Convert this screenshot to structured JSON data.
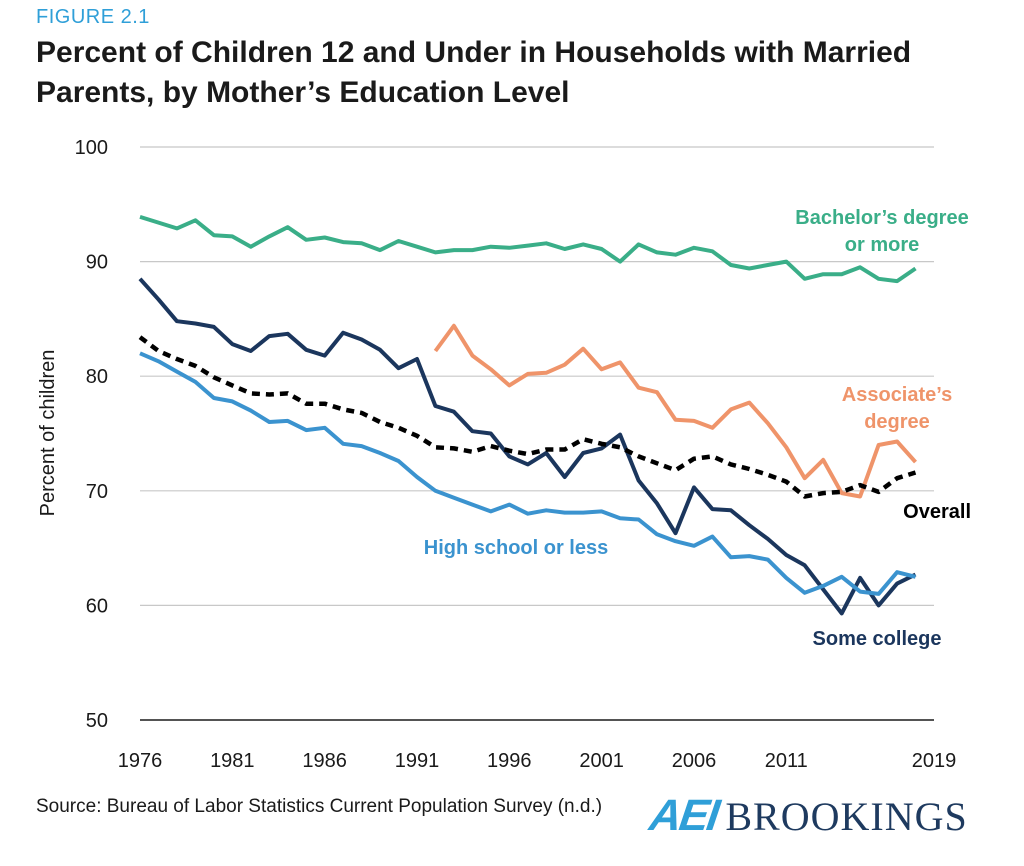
{
  "figure_label": "FIGURE 2.1",
  "source": "Source: Bureau of Labor Statistics Current Population Survey (n.d.)",
  "logo": {
    "aei": "AEI",
    "brookings": "BROOKINGS"
  },
  "colors": {
    "bachelors": "#3aae88",
    "associates": "#ef946a",
    "some_college": "#1b365d",
    "high_school": "#3b93cf",
    "overall": "#000000"
  },
  "chart_data": {
    "type": "line",
    "title": "Percent of Children 12 and Under in Households with Married Parents, by Mother’s Education Level",
    "ylabel": "Percent of children",
    "xlabel": "",
    "xlim": [
      1976,
      2019
    ],
    "ylim": [
      50,
      100
    ],
    "yticks": [
      50,
      60,
      70,
      80,
      90,
      100
    ],
    "xticks": [
      1976,
      1981,
      1986,
      1991,
      1996,
      2001,
      2006,
      2011,
      2019
    ],
    "grid": "horizontal",
    "x": [
      1976,
      1977,
      1978,
      1979,
      1980,
      1981,
      1982,
      1983,
      1984,
      1985,
      1986,
      1987,
      1988,
      1989,
      1990,
      1991,
      1992,
      1993,
      1994,
      1995,
      1996,
      1997,
      1998,
      1999,
      2000,
      2001,
      2002,
      2003,
      2004,
      2005,
      2006,
      2007,
      2008,
      2009,
      2010,
      2011,
      2012,
      2013,
      2014,
      2015,
      2016,
      2017,
      2018,
      2019
    ],
    "series": [
      {
        "name": "Bachelor’s degree or more",
        "label_lines": [
          "Bachelor’s degree",
          "or more"
        ],
        "color_key": "bachelors",
        "style": "solid",
        "values": [
          93.9,
          93.4,
          92.9,
          93.6,
          92.3,
          92.2,
          91.3,
          92.2,
          93.0,
          91.9,
          92.1,
          91.7,
          91.6,
          91.0,
          91.8,
          91.3,
          90.8,
          91.0,
          91.0,
          91.3,
          91.2,
          91.4,
          91.6,
          91.1,
          91.5,
          91.1,
          90.0,
          91.5,
          90.8,
          90.6,
          91.2,
          90.9,
          89.7,
          89.4,
          89.7,
          90.0,
          88.5,
          88.9,
          88.9,
          89.5,
          88.5,
          88.3,
          89.4,
          null
        ]
      },
      {
        "name": "Associate’s degree",
        "label_lines": [
          "Associate’s",
          "degree"
        ],
        "color_key": "associates",
        "style": "solid",
        "values": [
          null,
          null,
          null,
          null,
          null,
          null,
          null,
          null,
          null,
          null,
          null,
          null,
          null,
          null,
          null,
          null,
          82.2,
          84.4,
          81.8,
          80.6,
          79.2,
          80.2,
          80.3,
          81.0,
          82.4,
          80.6,
          81.2,
          79.0,
          78.6,
          76.2,
          76.1,
          75.5,
          77.1,
          77.7,
          75.9,
          73.8,
          71.1,
          72.7,
          69.8,
          69.5,
          74.0,
          74.3,
          72.5,
          null
        ]
      },
      {
        "name": "Some college",
        "label_lines": [
          "Some college"
        ],
        "color_key": "some_college",
        "style": "solid",
        "values": [
          88.5,
          86.7,
          84.8,
          84.6,
          84.3,
          82.8,
          82.2,
          83.5,
          83.7,
          82.3,
          81.8,
          83.8,
          83.2,
          82.3,
          80.7,
          81.5,
          77.4,
          76.9,
          75.2,
          75.0,
          73.0,
          72.3,
          73.3,
          71.2,
          73.3,
          73.7,
          74.9,
          70.9,
          68.9,
          66.3,
          70.3,
          68.4,
          68.3,
          67.0,
          65.8,
          64.4,
          63.5,
          61.4,
          59.3,
          62.4,
          60.0,
          61.9,
          62.7,
          null
        ]
      },
      {
        "name": "High school or less",
        "label_lines": [
          "High school or less"
        ],
        "color_key": "high_school",
        "style": "solid",
        "values": [
          82.0,
          81.3,
          80.4,
          79.5,
          78.1,
          77.8,
          77.0,
          76.0,
          76.1,
          75.3,
          75.5,
          74.1,
          73.9,
          73.3,
          72.6,
          71.2,
          70.0,
          69.4,
          68.8,
          68.2,
          68.8,
          68.0,
          68.3,
          68.1,
          68.1,
          68.2,
          67.6,
          67.5,
          66.2,
          65.6,
          65.2,
          66.0,
          64.2,
          64.3,
          64.0,
          62.4,
          61.1,
          61.7,
          62.5,
          61.2,
          61.0,
          62.9,
          62.5,
          null
        ]
      },
      {
        "name": "Overall",
        "label_lines": [
          "Overall"
        ],
        "color_key": "overall",
        "style": "dashed",
        "values": [
          83.4,
          82.2,
          81.5,
          80.9,
          79.9,
          79.2,
          78.5,
          78.4,
          78.5,
          77.6,
          77.6,
          77.1,
          76.8,
          76.0,
          75.5,
          74.8,
          73.8,
          73.7,
          73.4,
          73.9,
          73.5,
          73.2,
          73.6,
          73.6,
          74.5,
          74.1,
          73.8,
          73.0,
          72.4,
          71.8,
          72.8,
          73.0,
          72.3,
          71.9,
          71.4,
          70.8,
          69.5,
          69.8,
          69.9,
          70.5,
          69.9,
          71.1,
          71.6,
          null
        ]
      }
    ]
  }
}
